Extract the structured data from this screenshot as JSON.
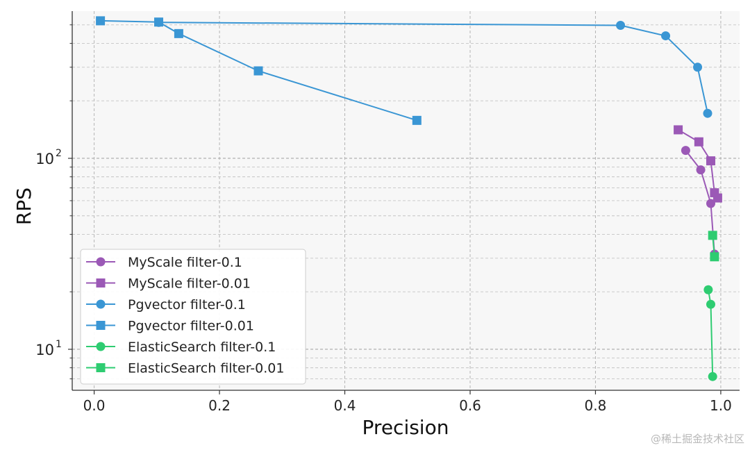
{
  "chart_data": {
    "type": "line",
    "title": "",
    "xlabel": "Precision",
    "ylabel": "RPS",
    "yscale": "log",
    "xlim": [
      -0.035,
      1.03
    ],
    "ylim": [
      6.1,
      590
    ],
    "xticks": [
      0.0,
      0.2,
      0.4,
      0.6,
      0.8,
      1.0
    ],
    "xtick_labels": [
      "0.0",
      "0.2",
      "0.4",
      "0.6",
      "0.8",
      "1.0"
    ],
    "yticks_major": [
      10,
      100
    ],
    "ytick_labels": [
      {
        "base": "10",
        "exp": "1"
      },
      {
        "base": "10",
        "exp": "2"
      }
    ],
    "grid": true,
    "legend_position": "lower-left",
    "series": [
      {
        "name": "MyScale filter-0.1",
        "color": "#9b59b6",
        "marker": "circle",
        "points": [
          [
            0.944,
            110
          ],
          [
            0.968,
            87
          ],
          [
            0.984,
            58
          ],
          [
            0.99,
            31.5
          ]
        ]
      },
      {
        "name": "MyScale filter-0.01",
        "color": "#9b59b6",
        "marker": "square",
        "points": [
          [
            0.932,
            141
          ],
          [
            0.965,
            122
          ],
          [
            0.984,
            97
          ],
          [
            0.99,
            66
          ],
          [
            0.995,
            62
          ]
        ]
      },
      {
        "name": "Pgvector filter-0.1",
        "color": "#3a96d4",
        "marker": "circle",
        "points": [
          [
            0.103,
            515
          ],
          [
            0.84,
            497
          ],
          [
            0.912,
            438
          ],
          [
            0.963,
            300
          ],
          [
            0.979,
            172
          ]
        ]
      },
      {
        "name": "Pgvector filter-0.01",
        "color": "#3a96d4",
        "marker": "square",
        "points": [
          [
            0.01,
            525
          ],
          [
            0.103,
            517
          ],
          [
            0.135,
            450
          ],
          [
            0.262,
            287
          ],
          [
            0.515,
            158
          ]
        ]
      },
      {
        "name": "ElasticSearch filter-0.1",
        "color": "#2ecc71",
        "marker": "circle",
        "points": [
          [
            0.98,
            20.5
          ],
          [
            0.984,
            17.2
          ],
          [
            0.987,
            7.2
          ]
        ]
      },
      {
        "name": "ElasticSearch filter-0.01",
        "color": "#2ecc71",
        "marker": "square",
        "points": [
          [
            0.987,
            39.5
          ],
          [
            0.99,
            30.5
          ]
        ]
      }
    ]
  },
  "watermark": "@稀土掘金技术社区"
}
